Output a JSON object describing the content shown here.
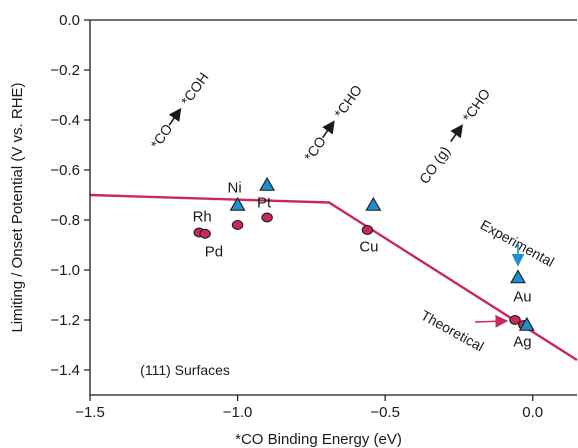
{
  "colors": {
    "theoretical": "#c8285c",
    "experimental": "#1e8fd0",
    "marker_edge": "#1a1a1a",
    "axis": "#1a1a1a"
  },
  "chart_data": {
    "type": "line",
    "xlabel": "*CO Binding Energy (eV)",
    "ylabel": "Limiting / Onset Potential (V vs. RHE)",
    "xlim": [
      -1.5,
      0.15
    ],
    "ylim": [
      -1.5,
      0.0
    ],
    "x_ticks": [
      -1.5,
      -1.0,
      -0.5,
      0.0
    ],
    "x_tick_labels": [
      "−1.5",
      "−1.0",
      "−0.5",
      "0.0"
    ],
    "y_ticks": [
      0.0,
      -0.2,
      -0.4,
      -0.6,
      -0.8,
      -1.0,
      -1.2,
      -1.4
    ],
    "y_tick_labels": [
      "0.0",
      "−0.2",
      "−0.4",
      "−0.6",
      "−0.8",
      "−1.0",
      "−1.2",
      "−1.4"
    ],
    "grid": false,
    "series": [
      {
        "name": "Theoretical",
        "type": "line",
        "x": [
          -1.5,
          -0.69,
          0.15
        ],
        "y": [
          -0.7,
          -0.73,
          -1.36
        ]
      },
      {
        "name": "Theoretical",
        "type": "scatter",
        "marker": "circle",
        "points": [
          {
            "metal": "Rh",
            "x": -1.13,
            "y": -0.85
          },
          {
            "metal": "Pd",
            "x": -1.11,
            "y": -0.855
          },
          {
            "metal": "Ni",
            "x": -1.0,
            "y": -0.82
          },
          {
            "metal": "Pt",
            "x": -0.9,
            "y": -0.79
          },
          {
            "metal": "Cu",
            "x": -0.56,
            "y": -0.84
          },
          {
            "metal": "Au",
            "x": -0.06,
            "y": -1.2
          },
          {
            "metal": "Ag",
            "x": -0.03,
            "y": -1.22
          }
        ]
      },
      {
        "name": "Experimental",
        "type": "scatter",
        "marker": "triangle",
        "points": [
          {
            "metal": "Ni",
            "x": -1.0,
            "y": -0.74
          },
          {
            "metal": "Pt",
            "x": -0.9,
            "y": -0.66
          },
          {
            "metal": "Cu",
            "x": -0.54,
            "y": -0.74
          },
          {
            "metal": "Au",
            "x": -0.05,
            "y": -1.03
          },
          {
            "metal": "Ag",
            "x": -0.02,
            "y": -1.22
          }
        ]
      }
    ],
    "metal_labels": [
      {
        "text": "Rh",
        "x": -1.12,
        "y": -0.785
      },
      {
        "text": "Pd",
        "x": -1.08,
        "y": -0.925
      },
      {
        "text": "Ni",
        "x": -1.01,
        "y": -0.67
      },
      {
        "text": "Pt",
        "x": -0.91,
        "y": -0.73
      },
      {
        "text": "Cu",
        "x": -0.555,
        "y": -0.905
      },
      {
        "text": "Au",
        "x": -0.035,
        "y": -1.105
      },
      {
        "text": "Ag",
        "x": -0.035,
        "y": -1.285
      }
    ],
    "annotations": {
      "reaction_1": {
        "prefix": "*CO",
        "suffix": "*COH",
        "x": -1.27,
        "y": -0.52,
        "angle": -55
      },
      "reaction_2": {
        "prefix": "*CO",
        "suffix": "*CHO",
        "x": -0.75,
        "y": -0.57,
        "angle": -55
      },
      "reaction_3": {
        "prefix": "CO (g)",
        "suffix": "*CHO",
        "x": -0.36,
        "y": -0.66,
        "angle": -55
      },
      "experimental_label": {
        "text": "Experimental",
        "x": -0.06,
        "y": -0.91,
        "angle": 29
      },
      "theoretical_label": {
        "text": "Theoretical",
        "x": -0.28,
        "y": -1.26,
        "angle": 29
      },
      "surface_label": {
        "text": "(111) Surfaces",
        "x": -1.33,
        "y": -1.4
      }
    }
  }
}
